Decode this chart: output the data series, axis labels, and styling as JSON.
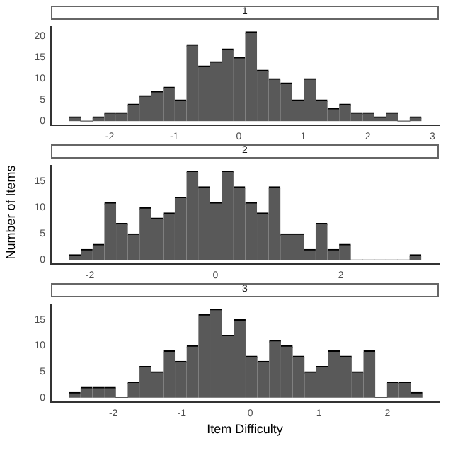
{
  "chart_data": [
    {
      "type": "histogram",
      "title": "1",
      "color": "#595959",
      "xlim": [
        -2.91,
        3.1
      ],
      "xticks": [
        -2,
        -1,
        0,
        1,
        2,
        3
      ],
      "ylim": [
        -1,
        22.1
      ],
      "yticks": [
        0,
        5,
        10,
        15,
        20
      ],
      "bins": [
        -2.63,
        -2.448,
        -2.266,
        -2.084,
        -1.902,
        -1.72,
        -1.538,
        -1.356,
        -1.174,
        -0.992,
        -0.81,
        -0.628,
        -0.446,
        -0.264,
        -0.082,
        0.1,
        0.282,
        0.464,
        0.646,
        0.828,
        1.01,
        1.192,
        1.374,
        1.556,
        1.738,
        1.92,
        2.102,
        2.284,
        2.466,
        2.648,
        2.83
      ],
      "values": [
        1,
        0,
        1,
        2,
        2,
        4,
        6,
        7,
        8,
        5,
        18,
        13,
        14,
        17,
        15,
        21,
        12,
        10,
        9,
        5,
        10,
        5,
        3,
        4,
        2,
        2,
        1,
        2,
        0,
        1
      ]
    },
    {
      "type": "histogram",
      "title": "2",
      "ylabel": "Number of Items",
      "color": "#595959",
      "xlim": [
        -2.62,
        3.56
      ],
      "xticks": [
        -2,
        0,
        2
      ],
      "ylim": [
        -0.8,
        18
      ],
      "yticks": [
        0,
        5,
        10,
        15
      ],
      "bins": [
        -2.33,
        -2.143,
        -1.956,
        -1.769,
        -1.582,
        -1.395,
        -1.208,
        -1.021,
        -0.834,
        -0.647,
        -0.46,
        -0.273,
        -0.086,
        0.101,
        0.288,
        0.475,
        0.662,
        0.849,
        1.036,
        1.223,
        1.41,
        1.597,
        1.784,
        1.971,
        2.158,
        2.345,
        2.532,
        2.719,
        2.906,
        3.093,
        3.28
      ],
      "values": [
        1,
        2,
        3,
        11,
        7,
        5,
        10,
        8,
        9,
        12,
        17,
        14,
        11,
        17,
        14,
        11,
        9,
        14,
        5,
        5,
        2,
        7,
        2,
        3,
        0,
        0,
        0,
        0,
        0,
        1
      ]
    },
    {
      "type": "histogram",
      "title": "3",
      "xlabel": "Item Difficulty",
      "color": "#595959",
      "xlim": [
        -2.91,
        2.75
      ],
      "xticks": [
        -2,
        -1,
        0,
        1,
        2
      ],
      "ylim": [
        -0.8,
        17.9
      ],
      "yticks": [
        0,
        5,
        10,
        15
      ],
      "bins": [
        -2.65,
        -2.478,
        -2.306,
        -2.134,
        -1.962,
        -1.79,
        -1.618,
        -1.446,
        -1.274,
        -1.102,
        -0.93,
        -0.758,
        -0.586,
        -0.414,
        -0.242,
        -0.07,
        0.102,
        0.274,
        0.446,
        0.618,
        0.79,
        0.962,
        1.134,
        1.306,
        1.478,
        1.65,
        1.822,
        1.994,
        2.166,
        2.338,
        2.51
      ],
      "values": [
        1,
        2,
        2,
        2,
        0,
        3,
        6,
        5,
        9,
        7,
        10,
        16,
        17,
        12,
        15,
        8,
        7,
        11,
        10,
        8,
        5,
        6,
        9,
        8,
        5,
        9,
        0,
        3,
        3,
        1
      ]
    }
  ]
}
